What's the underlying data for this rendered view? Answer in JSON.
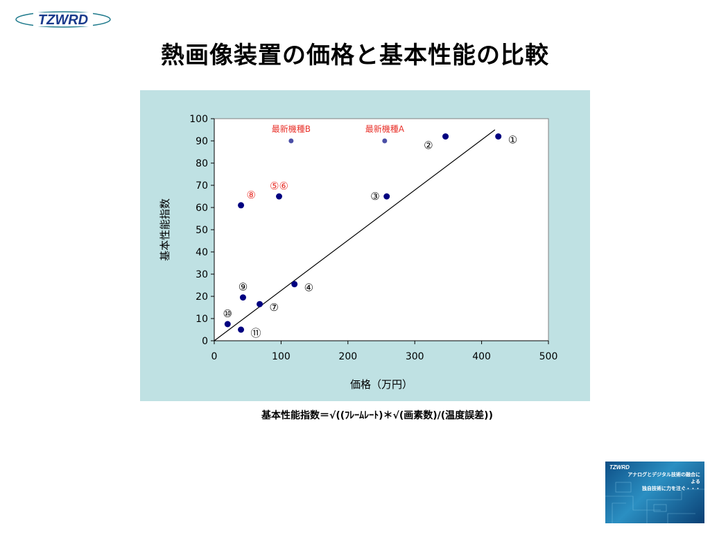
{
  "logo": {
    "text": "TZWRD",
    "icon": "tzwrd-oval-logo"
  },
  "title": "熱画像装置の価格と基本性能の比較",
  "formula": "基本性能指数＝√((ﾌﾚｰﾑﾚｰﾄ)＊√(画素数)/(温度誤差))",
  "thumbnail": {
    "logo": "TZWRD",
    "line1": "アナログとデジタル技術の融合による",
    "line2": "独自技術に力を注ぐ・・・"
  },
  "colors": {
    "panel": "#bfe1e3",
    "point": "#000080",
    "new_point": "#4b4fa6",
    "annotation_red": "#e8322b",
    "ellipse": "#f08a8a"
  },
  "chart_data": {
    "type": "scatter",
    "xlabel": "価格（万円）",
    "ylabel": "基本性能指数",
    "xlim": [
      0,
      500
    ],
    "ylim": [
      0,
      100
    ],
    "xticks": [
      0,
      100,
      200,
      300,
      400,
      500
    ],
    "yticks": [
      0,
      10,
      20,
      30,
      40,
      50,
      60,
      70,
      80,
      90,
      100
    ],
    "grid": false,
    "trendline": {
      "x": [
        0,
        420
      ],
      "y": [
        0,
        95
      ]
    },
    "points": [
      {
        "label": "①",
        "x": 425,
        "y": 92,
        "labelPos": "right-below"
      },
      {
        "label": "②",
        "x": 346,
        "y": 92,
        "labelPos": "left-below"
      },
      {
        "label": "③",
        "x": 258,
        "y": 65,
        "labelPos": "left"
      },
      {
        "label": "④",
        "x": 120,
        "y": 25.5,
        "labelPos": "right-below"
      },
      {
        "label": "⑤⑥",
        "x": 97,
        "y": 65,
        "labelPos": "above"
      },
      {
        "label": "⑦",
        "x": 68,
        "y": 16.5,
        "labelPos": "right-below"
      },
      {
        "label": "⑧",
        "x": 40,
        "y": 61,
        "labelPos": "right-above"
      },
      {
        "label": "⑨",
        "x": 43,
        "y": 19.5,
        "labelPos": "above"
      },
      {
        "label": "⑩",
        "x": 20,
        "y": 7.5,
        "labelPos": "above"
      },
      {
        "label": "⑪",
        "x": 40,
        "y": 5,
        "labelPos": "right-below"
      }
    ],
    "new_models": [
      {
        "label": "最新機種B",
        "x": 115,
        "y": 90
      },
      {
        "label": "最新機種A",
        "x": 255,
        "y": 90
      }
    ]
  }
}
